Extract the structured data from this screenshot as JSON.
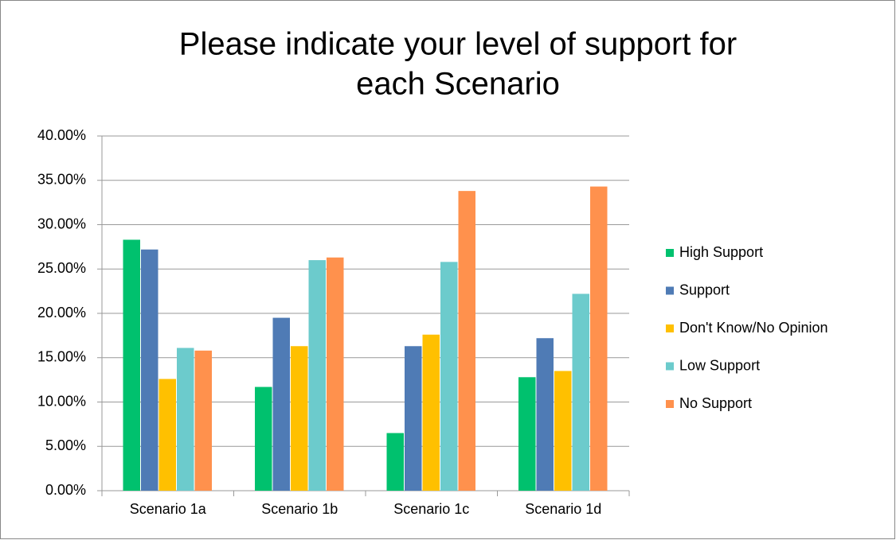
{
  "chart_data": {
    "type": "bar",
    "title": [
      "Please indicate your level of support for",
      "each Scenario"
    ],
    "categories": [
      "Scenario 1a",
      "Scenario 1b",
      "Scenario 1c",
      "Scenario 1d"
    ],
    "series": [
      {
        "name": "High Support",
        "color": "#00c16e",
        "values": [
          28.3,
          11.7,
          6.5,
          12.8
        ]
      },
      {
        "name": "Support",
        "color": "#4f7bb5",
        "values": [
          27.2,
          19.5,
          16.3,
          17.2
        ]
      },
      {
        "name": "Don't Know/No Opinion",
        "color": "#ffc000",
        "values": [
          12.6,
          16.3,
          17.6,
          13.5
        ]
      },
      {
        "name": "Low Support",
        "color": "#6ccbcc",
        "values": [
          16.1,
          26.0,
          25.8,
          22.2
        ]
      },
      {
        "name": "No Support",
        "color": "#ff914d",
        "values": [
          15.8,
          26.3,
          33.8,
          34.3
        ]
      }
    ],
    "ylim": [
      0,
      40
    ],
    "yticks": [
      {
        "value": 0,
        "label": "0.00%"
      },
      {
        "value": 5,
        "label": "5.00%"
      },
      {
        "value": 10,
        "label": "10.00%"
      },
      {
        "value": 15,
        "label": "15.00%"
      },
      {
        "value": 20,
        "label": "20.00%"
      },
      {
        "value": 25,
        "label": "25.00%"
      },
      {
        "value": 30,
        "label": "30.00%"
      },
      {
        "value": 35,
        "label": "35.00%"
      },
      {
        "value": 40,
        "label": "40.00%"
      }
    ],
    "grid": true,
    "legend": "right"
  }
}
